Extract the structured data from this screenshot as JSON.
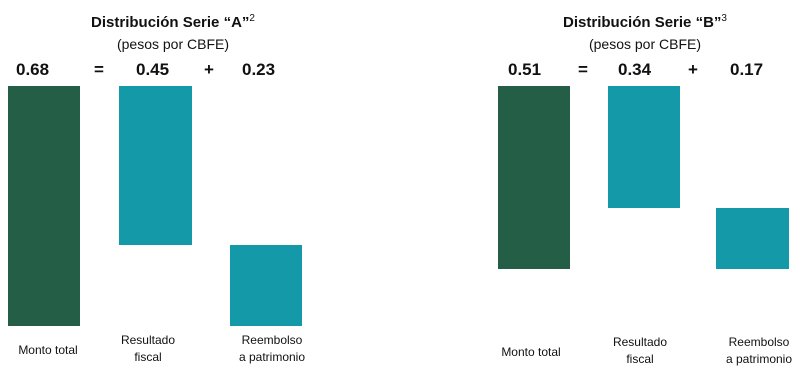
{
  "chart_data": [
    {
      "type": "bar",
      "title": "Distribución Serie “A”",
      "title_sup": "2",
      "subtitle": "(pesos por CBFE)",
      "equation": {
        "total": "0.68",
        "equals": "=",
        "part1": "0.45",
        "plus": "+",
        "part2": "0.23"
      },
      "categories": [
        "Monto total",
        "Resultado fiscal",
        "Reembolso a patrimonio"
      ],
      "category_lines": [
        [
          "Monto total"
        ],
        [
          "Resultado",
          "fiscal"
        ],
        [
          "Reembolso",
          "a patrimonio"
        ]
      ],
      "values": [
        0.68,
        0.45,
        0.23
      ],
      "colors": [
        "#245e47",
        "#1499a9",
        "#1499a9"
      ]
    },
    {
      "type": "bar",
      "title": "Distribución Serie “B”",
      "title_sup": "3",
      "subtitle": "(pesos por CBFE)",
      "equation": {
        "total": "0.51",
        "equals": "=",
        "part1": "0.34",
        "plus": "+",
        "part2": "0.17"
      },
      "categories": [
        "Monto total",
        "Resultado fiscal",
        "Reembolso a patrimonio"
      ],
      "category_lines": [
        [
          "Monto total"
        ],
        [
          "Resultado",
          "fiscal"
        ],
        [
          "Reembolso",
          "a patrimonio"
        ]
      ],
      "values": [
        0.51,
        0.34,
        0.17
      ],
      "colors": [
        "#245e47",
        "#1499a9",
        "#1499a9"
      ]
    }
  ]
}
